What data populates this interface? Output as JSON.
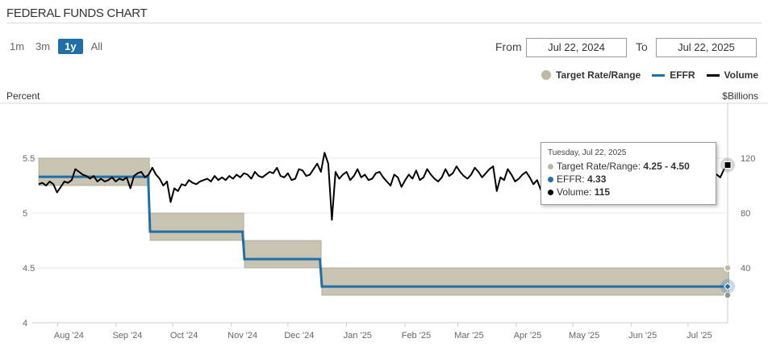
{
  "title": "FEDERAL FUNDS CHART",
  "zoom": {
    "options": [
      "1m",
      "3m",
      "1y",
      "All"
    ],
    "active": "1y"
  },
  "range": {
    "from_label": "From",
    "from_value": "Jul 22, 2024",
    "to_label": "To",
    "to_value": "Jul 22, 2025"
  },
  "legend": {
    "target": "Target Rate/Range",
    "effr": "EFFR",
    "volume": "Volume",
    "colors": {
      "target": "#bfb8a4",
      "effr": "#1f6fa9",
      "volume": "#000000"
    }
  },
  "axes": {
    "left_title": "Percent",
    "right_title": "$Billions"
  },
  "tooltip": {
    "date": "Tuesday, Jul 22, 2025",
    "target_label": "Target Rate/Range:",
    "target_value": "4.25 - 4.50",
    "effr_label": "EFFR:",
    "effr_value": "4.33",
    "volume_label": "Volume:",
    "volume_value": "115"
  },
  "chart_data": {
    "type": "line",
    "x_range": [
      "2024-07-22",
      "2025-07-22"
    ],
    "left_axis": {
      "ticks": [
        4,
        4.5,
        5,
        5.5
      ],
      "range": [
        4,
        6
      ]
    },
    "right_axis": {
      "ticks": [
        40,
        80,
        120
      ],
      "range": [
        0,
        160
      ]
    },
    "x_ticks": [
      {
        "label": "Aug '24",
        "date": "2024-08-01"
      },
      {
        "label": "Sep '24",
        "date": "2024-09-01"
      },
      {
        "label": "Oct '24",
        "date": "2024-10-01"
      },
      {
        "label": "Nov '24",
        "date": "2024-11-01"
      },
      {
        "label": "Dec '24",
        "date": "2024-12-01"
      },
      {
        "label": "Jan '25",
        "date": "2025-01-01"
      },
      {
        "label": "Feb '25",
        "date": "2025-02-01"
      },
      {
        "label": "Mar '25",
        "date": "2025-03-01"
      },
      {
        "label": "Apr '25",
        "date": "2025-04-01"
      },
      {
        "label": "May '25",
        "date": "2025-05-01"
      },
      {
        "label": "Jun '25",
        "date": "2025-06-01"
      },
      {
        "label": "Jul '25",
        "date": "2025-07-01"
      }
    ],
    "target_range": [
      {
        "start": "2024-07-22",
        "end": "2024-09-18",
        "low": 5.25,
        "high": 5.5
      },
      {
        "start": "2024-09-19",
        "end": "2024-11-07",
        "low": 4.75,
        "high": 5.0
      },
      {
        "start": "2024-11-08",
        "end": "2024-12-18",
        "low": 4.5,
        "high": 4.75
      },
      {
        "start": "2024-12-19",
        "end": "2025-07-22",
        "low": 4.25,
        "high": 4.5
      }
    ],
    "effr": [
      {
        "start": "2024-07-22",
        "end": "2024-09-18",
        "value": 5.33
      },
      {
        "start": "2024-09-19",
        "end": "2024-11-07",
        "value": 4.83
      },
      {
        "start": "2024-11-08",
        "end": "2024-12-18",
        "value": 4.58
      },
      {
        "start": "2024-12-19",
        "end": "2025-07-22",
        "value": 4.33
      }
    ],
    "volume": {
      "series_start": "2024-07-22",
      "series_end": "2025-07-22",
      "values": [
        101,
        102,
        100,
        103,
        101,
        95,
        99,
        103,
        102,
        104,
        112,
        110,
        108,
        107,
        105,
        107,
        103,
        105,
        103,
        104,
        106,
        103,
        105,
        104,
        106,
        98,
        107,
        109,
        110,
        106,
        108,
        113,
        108,
        105,
        100,
        103,
        88,
        98,
        96,
        101,
        100,
        104,
        102,
        101,
        103,
        104,
        105,
        103,
        107,
        104,
        106,
        104,
        107,
        105,
        108,
        106,
        109,
        108,
        105,
        110,
        107,
        106,
        108,
        110,
        109,
        113,
        107,
        106,
        109,
        104,
        105,
        112,
        111,
        107,
        108,
        112,
        116,
        110,
        124,
        116,
        75,
        110,
        105,
        108,
        110,
        104,
        107,
        112,
        106,
        108,
        104,
        105,
        109,
        110,
        106,
        103,
        100,
        108,
        106,
        99,
        104,
        108,
        105,
        111,
        104,
        106,
        112,
        108,
        105,
        103,
        106,
        112,
        107,
        109,
        114,
        110,
        107,
        105,
        108,
        113,
        110,
        106,
        109,
        112,
        114,
        96,
        106,
        104,
        112,
        108,
        103,
        105,
        108,
        110,
        106,
        101,
        104,
        97,
        102,
        112,
        108,
        110,
        106,
        104,
        107,
        101,
        103,
        108,
        105,
        110,
        104,
        100,
        106,
        112,
        108,
        109,
        107,
        110,
        96,
        104,
        108,
        106,
        103,
        107,
        110,
        106,
        112,
        108,
        108,
        111,
        96,
        105,
        108,
        112,
        110,
        106,
        103,
        107,
        109,
        112,
        110,
        114,
        116,
        112,
        110,
        108,
        106,
        112,
        115
      ]
    }
  }
}
